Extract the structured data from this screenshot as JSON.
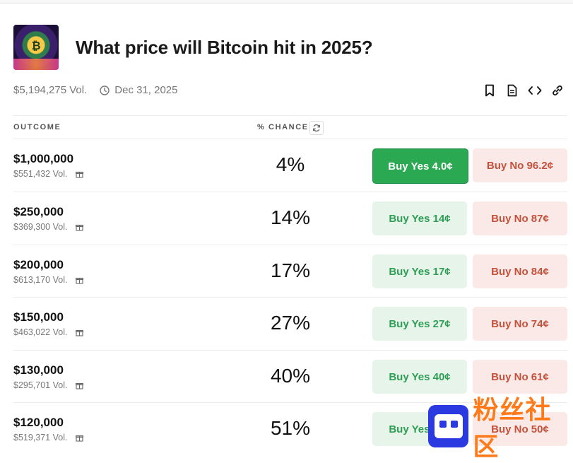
{
  "market": {
    "title": "What price will Bitcoin hit in 2025?",
    "volume": "$5,194,275 Vol.",
    "end_date": "Dec 31, 2025"
  },
  "table": {
    "col_outcome": "OUTCOME",
    "col_chance": "% CHANCE"
  },
  "outcomes": [
    {
      "price": "$1,000,000",
      "vol": "$551,432 Vol.",
      "chance": "4%",
      "yes": "Buy Yes 4.0¢",
      "no": "Buy No 96.2¢"
    },
    {
      "price": "$250,000",
      "vol": "$369,300 Vol.",
      "chance": "14%",
      "yes": "Buy Yes 14¢",
      "no": "Buy No 87¢"
    },
    {
      "price": "$200,000",
      "vol": "$613,170 Vol.",
      "chance": "17%",
      "yes": "Buy Yes 17¢",
      "no": "Buy No 84¢"
    },
    {
      "price": "$150,000",
      "vol": "$463,022 Vol.",
      "chance": "27%",
      "yes": "Buy Yes 27¢",
      "no": "Buy No 74¢"
    },
    {
      "price": "$130,000",
      "vol": "$295,701 Vol.",
      "chance": "40%",
      "yes": "Buy Yes 40¢",
      "no": "Buy No 61¢"
    },
    {
      "price": "$120,000",
      "vol": "$519,371 Vol.",
      "chance": "51%",
      "yes": "Buy Yes 50¢",
      "no": "Buy No 50¢"
    }
  ],
  "watermark": {
    "text": "粉丝社区"
  },
  "colors": {
    "yes_active": "#2aa952",
    "yes_bg": "#e6f4ea",
    "no_bg": "#fbe9e7",
    "no_text": "#c4513b"
  }
}
